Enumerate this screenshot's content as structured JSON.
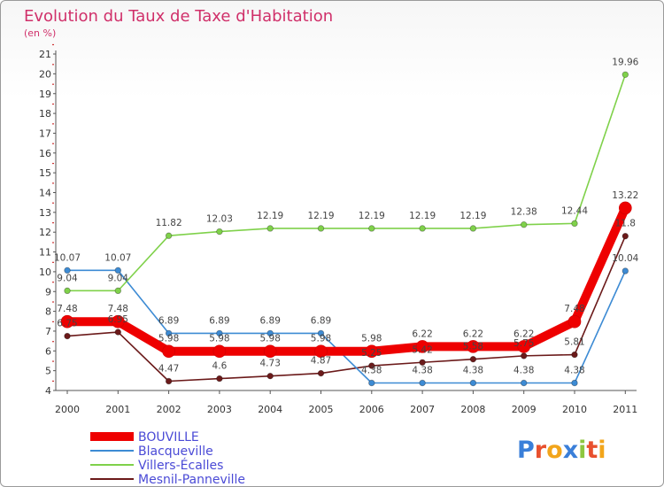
{
  "chart_data": {
    "type": "line",
    "title": "Evolution du Taux de Taxe d'Habitation",
    "subtitle": "(en %)",
    "xlabel": "",
    "ylabel": "",
    "x": [
      "2000",
      "2001",
      "2002",
      "2003",
      "2004",
      "2005",
      "2006",
      "2007",
      "2008",
      "2009",
      "2010",
      "2011"
    ],
    "ylim": [
      4,
      21
    ],
    "yticks": [
      "4",
      "5",
      "6",
      "7",
      "8",
      "9",
      "10",
      "11",
      "12",
      "13",
      "14",
      "15",
      "16",
      "17",
      "18",
      "19",
      "20",
      "21"
    ],
    "grid": false,
    "legend_position": "bottom-left",
    "series": [
      {
        "name": "BOUVILLE",
        "color": "#ee0000",
        "values": [
          7.48,
          7.48,
          5.98,
          5.98,
          5.98,
          5.98,
          5.98,
          6.22,
          6.22,
          6.22,
          7.48,
          13.22
        ],
        "labels": [
          "7.48",
          "7.48",
          "5.98",
          "5.98",
          "5.98",
          "5.98",
          "5.98",
          "6.22",
          "6.22",
          "6.22",
          "7.48",
          "13.22"
        ]
      },
      {
        "name": "Blacqueville",
        "color": "#3d8bd4",
        "values": [
          10.07,
          10.07,
          6.89,
          6.89,
          6.89,
          6.89,
          4.38,
          4.38,
          4.38,
          4.38,
          4.38,
          10.04
        ],
        "labels": [
          "10.07",
          "10.07",
          "6.89",
          "6.89",
          "6.89",
          "6.89",
          "4.38",
          "4.38",
          "4.38",
          "4.38",
          "4.38",
          "10.04"
        ]
      },
      {
        "name": "Villers-Écalles",
        "color": "#7fd14a",
        "values": [
          9.04,
          9.04,
          11.82,
          12.03,
          12.19,
          12.19,
          12.19,
          12.19,
          12.19,
          12.38,
          12.44,
          19.96
        ],
        "labels": [
          "9.04",
          "9.04",
          "11.82",
          "12.03",
          "12.19",
          "12.19",
          "12.19",
          "12.19",
          "12.19",
          "12.38",
          "12.44",
          "19.96"
        ]
      },
      {
        "name": "Mesnil-Panneville",
        "color": "#6b1a1a",
        "values": [
          6.75,
          6.95,
          4.47,
          4.6,
          4.73,
          4.87,
          5.25,
          5.42,
          5.58,
          5.75,
          5.81,
          11.8
        ],
        "labels": [
          "6.75",
          "6.95",
          "4.47",
          "4.6",
          "4.73",
          "4.87",
          "5.25",
          "5.42",
          "5.58",
          "5.75",
          "5.81",
          "11.8"
        ]
      }
    ]
  },
  "brand": {
    "letters": [
      "P",
      "r",
      "o",
      "x",
      "i",
      "t",
      "i"
    ],
    "colors": [
      "#3a7fd9",
      "#e8502e",
      "#f2a51b",
      "#3a7fd9",
      "#8dc63f",
      "#e8502e",
      "#f2a51b"
    ]
  }
}
